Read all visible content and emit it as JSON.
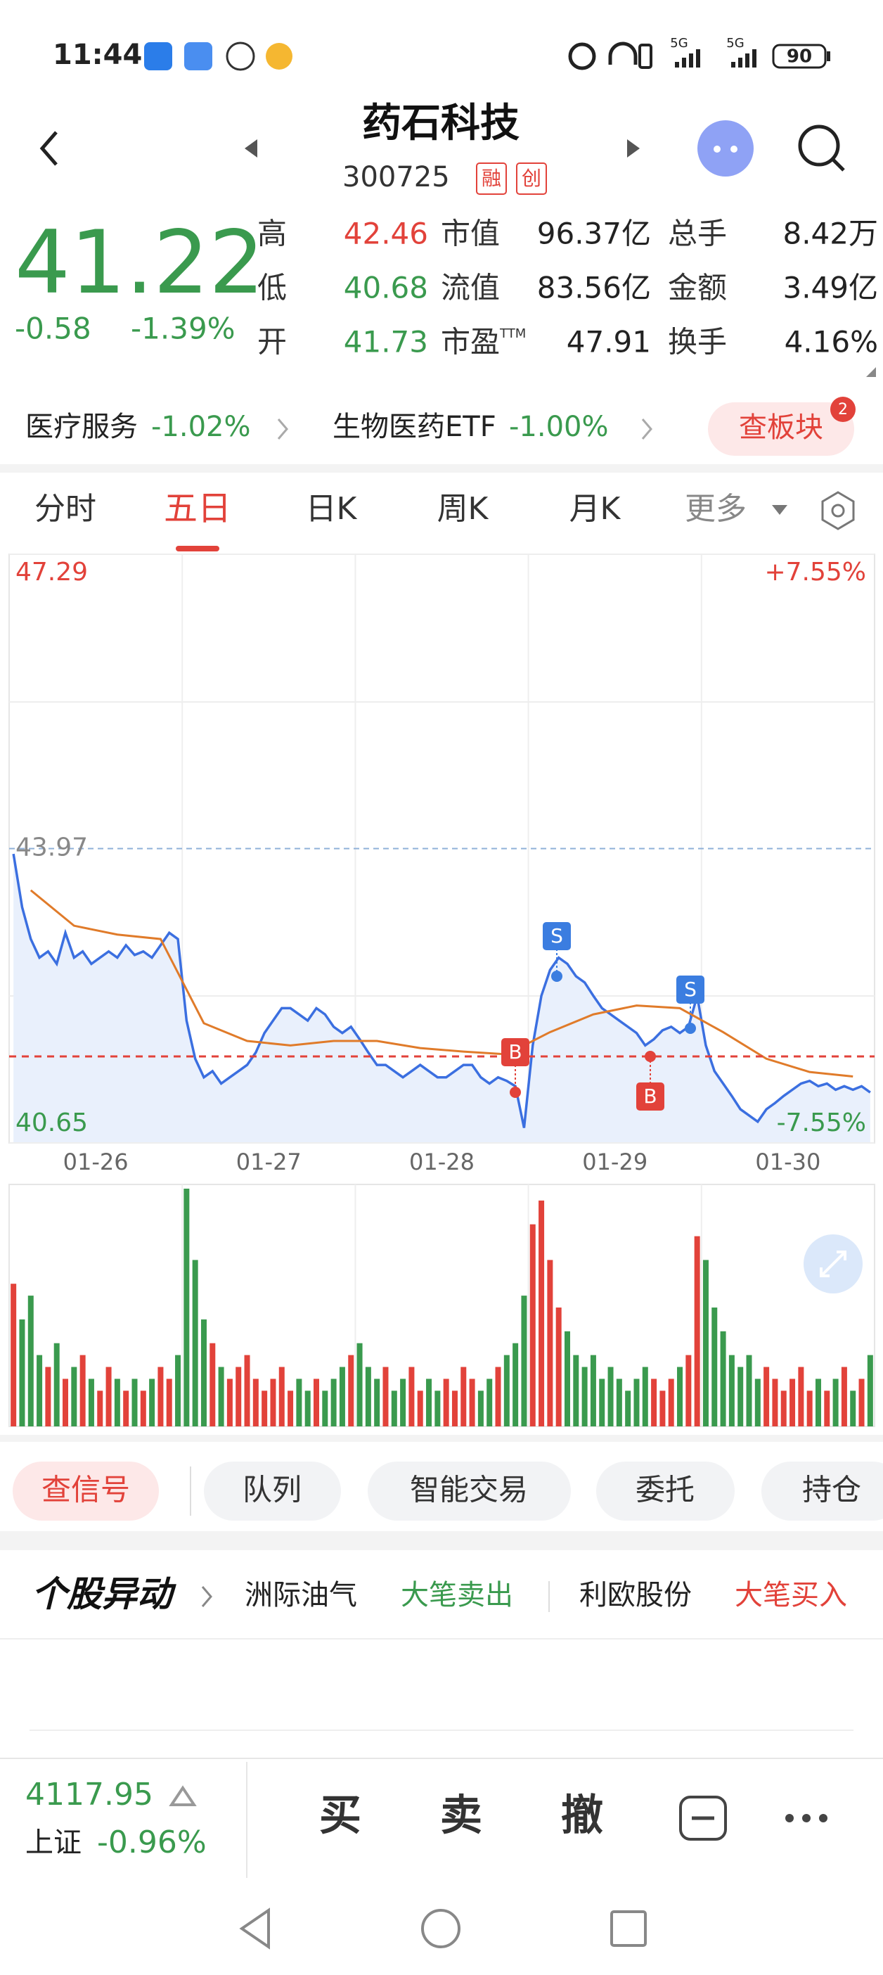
{
  "status_bar": {
    "time": "11:44",
    "network": [
      "5G",
      "5G"
    ],
    "battery": "90"
  },
  "header": {
    "name": "药石科技",
    "code": "300725",
    "badges": [
      "融",
      "创"
    ]
  },
  "quote": {
    "price": "41.22",
    "change": "-0.58",
    "change_pct": "-1.39%",
    "stats": [
      [
        {
          "label": "高",
          "value": "42.46",
          "color": "#e2423a"
        },
        {
          "label": "市值",
          "value": "96.37亿"
        },
        {
          "label": "总手",
          "value": "8.42万"
        }
      ],
      [
        {
          "label": "低",
          "value": "40.68",
          "color": "#3a9a4e"
        },
        {
          "label": "流值",
          "value": "83.56亿"
        },
        {
          "label": "金额",
          "value": "3.49亿"
        }
      ],
      [
        {
          "label": "开",
          "value": "41.73",
          "color": "#3a9a4e"
        },
        {
          "label": "市盈",
          "sup": "TTM",
          "value": "47.91"
        },
        {
          "label": "换手",
          "value": "4.16%"
        }
      ]
    ]
  },
  "sectors": [
    {
      "name": "医疗服务",
      "change": "-1.02%"
    },
    {
      "name": "生物医药ETF",
      "change": "-1.00%"
    }
  ],
  "sector_button": {
    "label": "查板块",
    "badge": "2"
  },
  "tabs": {
    "items": [
      "分时",
      "五日",
      "日K",
      "周K",
      "月K",
      "更多"
    ],
    "active": 1
  },
  "chart_data": {
    "type": "line",
    "x_labels": [
      "01-26",
      "01-27",
      "01-28",
      "01-29",
      "01-30"
    ],
    "ylim": [
      40.65,
      47.29
    ],
    "yticks": [
      40.65,
      43.97,
      47.29
    ],
    "right_labels": [
      {
        "value": 40.65,
        "label": "-7.55%"
      },
      {
        "value": 47.29,
        "label": "+7.55%"
      }
    ],
    "series": [
      {
        "color": "#3b6fe0",
        "values": [
          43.91,
          43.31,
          42.95,
          42.74,
          42.81,
          42.67,
          43.02,
          42.74,
          42.81,
          42.67,
          42.74,
          42.81,
          42.74,
          42.88,
          42.77,
          42.81,
          42.74,
          42.88,
          43.02,
          42.95,
          42.03,
          41.6,
          41.39,
          41.46,
          41.32,
          41.39,
          41.46,
          41.53,
          41.67,
          41.89,
          42.03,
          42.17,
          42.17,
          42.1,
          42.03,
          42.17,
          42.1,
          41.96,
          41.89,
          41.96,
          41.82,
          41.67,
          41.53,
          41.53,
          41.46,
          41.39,
          41.46,
          41.53,
          41.46,
          41.39,
          41.39,
          41.46,
          41.53,
          41.53,
          41.39,
          41.32,
          41.39,
          41.35,
          41.29,
          40.82,
          41.75,
          42.31,
          42.6,
          42.74,
          42.67,
          42.53,
          42.46,
          42.31,
          42.17,
          42.1,
          42.03,
          41.96,
          41.89,
          41.75,
          41.82,
          41.92,
          41.96,
          41.89,
          41.96,
          42.31,
          41.75,
          41.46,
          41.32,
          41.18,
          41.03,
          40.96,
          40.89,
          41.03,
          41.1,
          41.18,
          41.25,
          41.32,
          41.35,
          41.29,
          41.32,
          41.25,
          41.29,
          41.25,
          41.29,
          41.22
        ]
      },
      {
        "color": "#e07b2a",
        "values": [
          43.5,
          43.1,
          43.0,
          42.95,
          42.0,
          41.8,
          41.75,
          41.8,
          41.8,
          41.72,
          41.68,
          41.65,
          41.9,
          42.1,
          42.2,
          42.17,
          41.9,
          41.6,
          41.45,
          41.4
        ]
      }
    ],
    "volume": {
      "ylim": [
        0,
        100
      ],
      "up_color": "#e2423a",
      "down_color": "#3a9a4e",
      "values": [
        60,
        45,
        55,
        30,
        25,
        35,
        20,
        25,
        30,
        20,
        15,
        25,
        20,
        15,
        20,
        15,
        20,
        25,
        20,
        30,
        100,
        70,
        45,
        35,
        25,
        20,
        25,
        30,
        20,
        15,
        20,
        25,
        15,
        20,
        15,
        20,
        15,
        20,
        25,
        30,
        35,
        25,
        20,
        25,
        15,
        20,
        25,
        15,
        20,
        15,
        20,
        15,
        25,
        20,
        15,
        20,
        25,
        30,
        35,
        55,
        85,
        95,
        70,
        50,
        40,
        30,
        25,
        30,
        20,
        25,
        20,
        15,
        20,
        25,
        20,
        15,
        20,
        25,
        30,
        80,
        70,
        50,
        40,
        30,
        25,
        30,
        20,
        25,
        20,
        15,
        20,
        25,
        15,
        20,
        15,
        20,
        25,
        15,
        20,
        30
      ]
    },
    "signals": [
      "S",
      "B",
      "B",
      "S"
    ]
  },
  "actions": [
    "查信号",
    "队列",
    "智能交易",
    "委托",
    "持仓"
  ],
  "alerts": {
    "title": "个股异动",
    "items": [
      {
        "stock": "洲际油气",
        "event": "大笔卖出"
      },
      {
        "stock": "利欧股份",
        "event": "大笔买入"
      }
    ]
  },
  "index_bar": {
    "value": "4117.95",
    "name": "上证",
    "change": "-0.96%"
  },
  "trade_buttons": [
    "买",
    "卖",
    "撤"
  ]
}
